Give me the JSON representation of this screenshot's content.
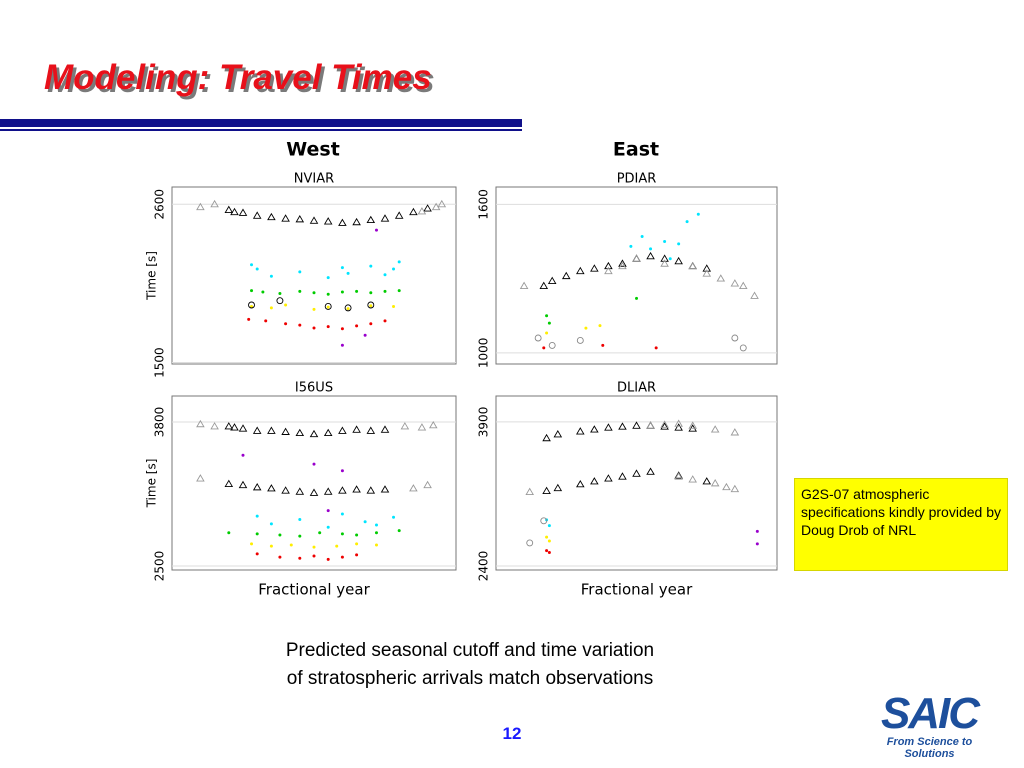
{
  "header": {
    "title": "Modeling: Travel Times"
  },
  "column_titles": [
    "West",
    "East"
  ],
  "chart_data": [
    {
      "type": "scatter",
      "title": "NVIAR",
      "ylabel": "Time [s]",
      "xlim": [
        0,
        1
      ],
      "ylim": [
        1490,
        2720
      ],
      "yticks": [
        1500,
        2600
      ],
      "grid": true,
      "series": [
        {
          "color": "#000000",
          "marker": "triangle",
          "x": [
            0.2,
            0.22,
            0.25,
            0.3,
            0.35,
            0.4,
            0.45,
            0.5,
            0.55,
            0.6,
            0.65,
            0.7,
            0.75,
            0.8,
            0.85,
            0.9
          ],
          "y": [
            2560,
            2545,
            2540,
            2520,
            2510,
            2500,
            2495,
            2485,
            2480,
            2470,
            2475,
            2490,
            2500,
            2520,
            2545,
            2570
          ]
        },
        {
          "color": "#999999",
          "marker": "triangle",
          "x": [
            0.1,
            0.15,
            0.88,
            0.93,
            0.95
          ],
          "y": [
            2580,
            2600,
            2550,
            2580,
            2600
          ]
        },
        {
          "color": "#00e5ff",
          "marker": "dot",
          "x": [
            0.28,
            0.3,
            0.35,
            0.45,
            0.55,
            0.6,
            0.7,
            0.75,
            0.8,
            0.62,
            0.78
          ],
          "y": [
            2180,
            2150,
            2100,
            2130,
            2090,
            2160,
            2170,
            2110,
            2200,
            2120,
            2150
          ]
        },
        {
          "color": "#00cc00",
          "marker": "dot",
          "x": [
            0.28,
            0.32,
            0.38,
            0.45,
            0.5,
            0.55,
            0.6,
            0.65,
            0.7,
            0.75,
            0.8
          ],
          "y": [
            2000,
            1990,
            1980,
            1995,
            1985,
            1975,
            1990,
            1995,
            1985,
            1995,
            2000
          ]
        },
        {
          "color": "#ffee00",
          "marker": "dot",
          "x": [
            0.28,
            0.35,
            0.4,
            0.5,
            0.55,
            0.62,
            0.7,
            0.78
          ],
          "y": [
            1890,
            1880,
            1900,
            1870,
            1885,
            1875,
            1895,
            1890
          ]
        },
        {
          "color": "#ee0000",
          "marker": "dot",
          "x": [
            0.27,
            0.33,
            0.4,
            0.45,
            0.5,
            0.55,
            0.6,
            0.65,
            0.7,
            0.75
          ],
          "y": [
            1800,
            1790,
            1770,
            1760,
            1740,
            1750,
            1735,
            1755,
            1770,
            1790
          ]
        },
        {
          "color": "#9900cc",
          "marker": "dot",
          "x": [
            0.72,
            0.6,
            0.68
          ],
          "y": [
            2420,
            1620,
            1690
          ]
        },
        {
          "color": "#000000",
          "marker": "circle",
          "x": [
            0.28,
            0.38,
            0.55,
            0.62,
            0.7
          ],
          "y": [
            1900,
            1930,
            1890,
            1880,
            1900
          ]
        }
      ]
    },
    {
      "type": "scatter",
      "title": "PDIAR",
      "xlim": [
        0,
        1
      ],
      "ylim": [
        955,
        1670
      ],
      "yticks": [
        1000,
        1600
      ],
      "grid": true,
      "series": [
        {
          "color": "#000000",
          "marker": "triangle",
          "x": [
            0.17,
            0.2,
            0.25,
            0.3,
            0.35,
            0.4,
            0.45,
            0.5,
            0.55,
            0.6,
            0.65,
            0.7,
            0.75
          ],
          "y": [
            1270,
            1290,
            1310,
            1330,
            1340,
            1350,
            1360,
            1380,
            1390,
            1380,
            1370,
            1350,
            1340
          ]
        },
        {
          "color": "#999999",
          "marker": "triangle",
          "x": [
            0.1,
            0.4,
            0.45,
            0.5,
            0.6,
            0.7,
            0.75,
            0.8,
            0.85,
            0.88,
            0.92
          ],
          "y": [
            1270,
            1330,
            1350,
            1380,
            1360,
            1350,
            1320,
            1300,
            1280,
            1270,
            1230
          ]
        },
        {
          "color": "#00e5ff",
          "marker": "dot",
          "x": [
            0.48,
            0.52,
            0.55,
            0.6,
            0.62,
            0.65,
            0.68,
            0.72
          ],
          "y": [
            1430,
            1470,
            1420,
            1450,
            1380,
            1440,
            1530,
            1560
          ]
        },
        {
          "color": "#00cc00",
          "marker": "dot",
          "x": [
            0.18,
            0.19,
            0.5
          ],
          "y": [
            1150,
            1120,
            1220
          ]
        },
        {
          "color": "#ffee00",
          "marker": "dot",
          "x": [
            0.18,
            0.32,
            0.37
          ],
          "y": [
            1080,
            1100,
            1110
          ]
        },
        {
          "color": "#ee0000",
          "marker": "dot",
          "x": [
            0.17,
            0.38,
            0.57
          ],
          "y": [
            1020,
            1030,
            1020
          ]
        },
        {
          "color": "#888888",
          "marker": "circle",
          "x": [
            0.15,
            0.2,
            0.3,
            0.85,
            0.88
          ],
          "y": [
            1060,
            1030,
            1050,
            1060,
            1020
          ]
        }
      ]
    },
    {
      "type": "scatter",
      "title": "I56US",
      "ylabel": "Time [s]",
      "xlabel": "Fractional year",
      "xlim": [
        0,
        1
      ],
      "ylim": [
        2464,
        4035
      ],
      "yticks": [
        2500,
        3800
      ],
      "grid": true,
      "series": [
        {
          "color": "#000000",
          "marker": "triangle",
          "x": [
            0.2,
            0.22,
            0.25,
            0.3,
            0.35,
            0.4,
            0.45,
            0.5,
            0.55,
            0.6,
            0.65,
            0.7,
            0.75,
            0.2,
            0.25,
            0.3,
            0.35,
            0.4,
            0.45,
            0.5,
            0.55,
            0.6,
            0.65,
            0.7,
            0.75
          ],
          "y": [
            3760,
            3750,
            3740,
            3720,
            3720,
            3710,
            3700,
            3690,
            3700,
            3720,
            3730,
            3720,
            3730,
            3240,
            3230,
            3210,
            3200,
            3180,
            3170,
            3160,
            3170,
            3180,
            3190,
            3180,
            3190
          ]
        },
        {
          "color": "#999999",
          "marker": "triangle",
          "x": [
            0.1,
            0.15,
            0.82,
            0.88,
            0.92,
            0.1,
            0.85,
            0.9
          ],
          "y": [
            3780,
            3760,
            3760,
            3750,
            3770,
            3290,
            3200,
            3230
          ]
        },
        {
          "color": "#00e5ff",
          "marker": "dot",
          "x": [
            0.3,
            0.35,
            0.45,
            0.55,
            0.6,
            0.68,
            0.72,
            0.78
          ],
          "y": [
            2950,
            2880,
            2920,
            2850,
            2970,
            2900,
            2870,
            2940
          ]
        },
        {
          "color": "#00cc00",
          "marker": "dot",
          "x": [
            0.2,
            0.3,
            0.38,
            0.45,
            0.52,
            0.6,
            0.65,
            0.72,
            0.8
          ],
          "y": [
            2800,
            2790,
            2780,
            2770,
            2800,
            2790,
            2780,
            2800,
            2820
          ]
        },
        {
          "color": "#ffee00",
          "marker": "dot",
          "x": [
            0.28,
            0.35,
            0.42,
            0.5,
            0.58,
            0.65,
            0.72
          ],
          "y": [
            2700,
            2680,
            2690,
            2670,
            2680,
            2700,
            2690
          ]
        },
        {
          "color": "#ee0000",
          "marker": "dot",
          "x": [
            0.3,
            0.38,
            0.45,
            0.5,
            0.55,
            0.6,
            0.65
          ],
          "y": [
            2610,
            2580,
            2570,
            2590,
            2560,
            2580,
            2600
          ]
        },
        {
          "color": "#9900cc",
          "marker": "dot",
          "x": [
            0.25,
            0.5,
            0.6,
            0.55
          ],
          "y": [
            3500,
            3420,
            3360,
            3000
          ]
        }
      ]
    },
    {
      "type": "scatter",
      "title": "DLIAR",
      "xlabel": "Fractional year",
      "xlim": [
        0,
        1
      ],
      "ylim": [
        2358,
        4170
      ],
      "yticks": [
        2400,
        3900
      ],
      "grid": true,
      "series": [
        {
          "color": "#000000",
          "marker": "triangle",
          "x": [
            0.18,
            0.22,
            0.3,
            0.35,
            0.4,
            0.45,
            0.5,
            0.55,
            0.6,
            0.65,
            0.7,
            0.18,
            0.22,
            0.3,
            0.35,
            0.4,
            0.45,
            0.5,
            0.55,
            0.65,
            0.75
          ],
          "y": [
            3730,
            3770,
            3800,
            3820,
            3840,
            3850,
            3860,
            3860,
            3850,
            3840,
            3830,
            3180,
            3210,
            3250,
            3280,
            3310,
            3330,
            3360,
            3380,
            3340,
            3280
          ]
        },
        {
          "color": "#999999",
          "marker": "triangle",
          "x": [
            0.55,
            0.6,
            0.65,
            0.7,
            0.78,
            0.85,
            0.65,
            0.7,
            0.78,
            0.82,
            0.85,
            0.12
          ],
          "y": [
            3860,
            3870,
            3880,
            3860,
            3820,
            3790,
            3330,
            3300,
            3260,
            3220,
            3200,
            3170
          ]
        },
        {
          "color": "#00e5ff",
          "marker": "dot",
          "x": [
            0.18,
            0.19
          ],
          "y": [
            2880,
            2820
          ]
        },
        {
          "color": "#ffee00",
          "marker": "dot",
          "x": [
            0.19,
            0.18
          ],
          "y": [
            2660,
            2700
          ]
        },
        {
          "color": "#ee0000",
          "marker": "dot",
          "x": [
            0.18,
            0.19
          ],
          "y": [
            2560,
            2540
          ]
        },
        {
          "color": "#9900cc",
          "marker": "dot",
          "x": [
            0.93,
            0.93
          ],
          "y": [
            2760,
            2630
          ]
        },
        {
          "color": "#888888",
          "marker": "circle",
          "x": [
            0.12,
            0.17
          ],
          "y": [
            2640,
            2870
          ]
        }
      ]
    }
  ],
  "note": "G2S-07 atmospheric specifications kindly provided by Doug Drob of NRL",
  "caption": [
    "Predicted seasonal cutoff and time variation",
    "of stratospheric arrivals match observations"
  ],
  "page_number": "12",
  "logo": {
    "name": "SAIC",
    "tagline": "From Science to Solutions"
  }
}
